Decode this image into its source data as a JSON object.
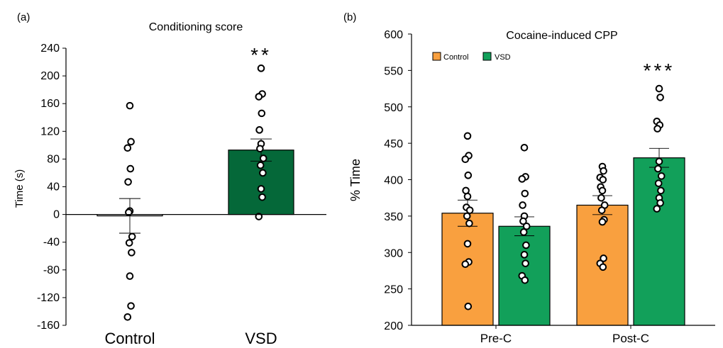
{
  "chart_data": [
    {
      "panel": "(a)",
      "type": "bar",
      "title": "Conditioning score",
      "ylabel": "Time (s)",
      "xlabel": "",
      "ylim": [
        -160,
        240
      ],
      "yticks": [
        240,
        200,
        160,
        120,
        80,
        40,
        0,
        -40,
        -80,
        -120,
        -160
      ],
      "categories": [
        "Control",
        "VSD"
      ],
      "values": [
        -2,
        93
      ],
      "errors": [
        25,
        16
      ],
      "colors": [
        "#ffffff",
        "#056839"
      ],
      "points": [
        [
          157,
          105,
          96,
          66,
          47,
          5,
          3,
          -32,
          -41,
          -55,
          -89,
          -132,
          -148
        ],
        [
          211,
          174,
          170,
          146,
          122,
          102,
          95,
          81,
          71,
          60,
          37,
          25,
          -3
        ]
      ],
      "significance": [
        "",
        "**"
      ],
      "grid": false
    },
    {
      "panel": "(b)",
      "type": "bar",
      "title": "Cocaine-induced CPP",
      "ylabel": "% Time",
      "xlabel": "",
      "ylim": [
        200,
        600
      ],
      "yticks": [
        600,
        550,
        500,
        450,
        400,
        350,
        300,
        250,
        200
      ],
      "categories": [
        "Pre-C",
        "Post-C"
      ],
      "series": [
        {
          "name": "Control",
          "color": "#f9a03f",
          "values": [
            354,
            365
          ],
          "errors": [
            18,
            13
          ],
          "points": [
            [
              460,
              433,
              428,
              406,
              385,
              377,
              362,
              358,
              350,
              340,
              312,
              287,
              284,
              226
            ],
            [
              418,
              412,
              403,
              400,
              390,
              385,
              375,
              365,
              358,
              345,
              342,
              292,
              285,
              280
            ]
          ]
        },
        {
          "name": "VSD",
          "color": "#12a05a",
          "values": [
            336,
            430
          ],
          "errors": [
            13,
            13
          ],
          "points": [
            [
              444,
              404,
              401,
              381,
              365,
              350,
              343,
              336,
              328,
              310,
              297,
              285,
              268,
              262
            ],
            [
              525,
              513,
              480,
              475,
              470,
              425,
              415,
              405,
              395,
              385,
              375,
              368,
              360
            ]
          ]
        }
      ],
      "significance": [
        "",
        "***"
      ],
      "legend": "top-left",
      "grid": false
    }
  ]
}
